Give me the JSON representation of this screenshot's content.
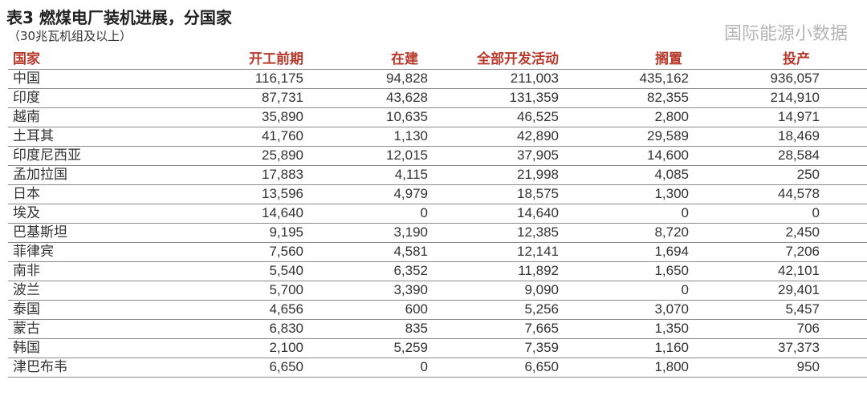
{
  "title": "表3 燃煤电厂装机进展，分国家",
  "subtitle": "（30兆瓦机组及以上）",
  "header_color": "#b83a2c",
  "columns": [
    "国家",
    "开工前期",
    "在建",
    "全部开发活动",
    "搁置",
    "投产"
  ],
  "rows": [
    [
      "中国",
      "116,175",
      "94,828",
      "211,003",
      "435,162",
      "936,057"
    ],
    [
      "印度",
      "87,731",
      "43,628",
      "131,359",
      "82,355",
      "214,910"
    ],
    [
      "越南",
      "35,890",
      "10,635",
      "46,525",
      "2,800",
      "14,971"
    ],
    [
      "土耳其",
      "41,760",
      "1,130",
      "42,890",
      "29,589",
      "18,469"
    ],
    [
      "印度尼西亚",
      "25,890",
      "12,015",
      "37,905",
      "14,600",
      "28,584"
    ],
    [
      "孟加拉国",
      "17,883",
      "4,115",
      "21,998",
      "4,085",
      "250"
    ],
    [
      "日本",
      "13,596",
      "4,979",
      "18,575",
      "1,300",
      "44,578"
    ],
    [
      "埃及",
      "14,640",
      "0",
      "14,640",
      "0",
      "0"
    ],
    [
      "巴基斯坦",
      "9,195",
      "3,190",
      "12,385",
      "8,720",
      "2,450"
    ],
    [
      "菲律宾",
      "7,560",
      "4,581",
      "12,141",
      "1,694",
      "7,206"
    ],
    [
      "南非",
      "5,540",
      "6,352",
      "11,892",
      "1,650",
      "42,101"
    ],
    [
      "波兰",
      "5,700",
      "3,390",
      "9,090",
      "0",
      "29,401"
    ],
    [
      "泰国",
      "4,656",
      "600",
      "5,256",
      "3,070",
      "5,457"
    ],
    [
      "蒙古",
      "6,830",
      "835",
      "7,665",
      "1,350",
      "706"
    ],
    [
      "韩国",
      "2,100",
      "5,259",
      "7,359",
      "1,160",
      "37,373"
    ],
    [
      "津巴布韦",
      "6,650",
      "0",
      "6,650",
      "1,800",
      "950"
    ]
  ],
  "watermark": "国际能源小数据"
}
